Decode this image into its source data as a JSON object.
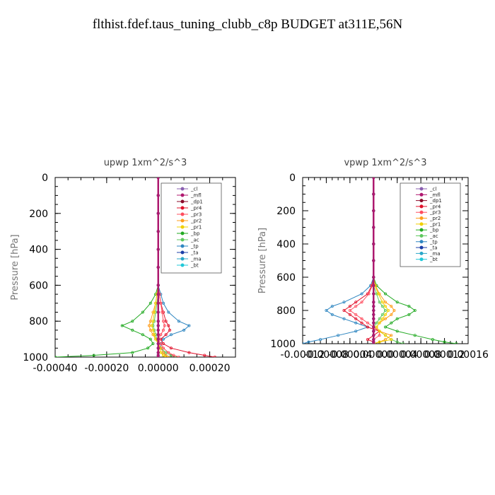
{
  "page": {
    "title": "flthist.fdef.taus_tuning_clubb_c8p  BUDGET at311E,56N"
  },
  "colors": {
    "_cl": "#8a5fb0",
    "_mfl": "#b0186f",
    "_dp1": "#8b0a2a",
    "_pr4": "#e0102a",
    "_pr3": "#ff4d5e",
    "_pr2": "#ff9d1a",
    "_pr1": "#f0d000",
    "_bp": "#22aa22",
    "_ac": "#5ec85e",
    "_tp": "#2e86c1",
    "_ta": "#1c3fa8",
    "_ma": "#2aa7c9",
    "_bt": "#20c8d8"
  },
  "chart_data": [
    {
      "type": "line",
      "title": "upwp   1xm^2/s^3",
      "ylabel": "Pressure [hPa]",
      "xlabel": "",
      "xlim": [
        -0.0004,
        0.0003
      ],
      "ylim": [
        1000,
        0
      ],
      "xticks": [
        "-0.00040",
        "-0.00020",
        "0.00000",
        "0.00020"
      ],
      "xtick_values": [
        -0.0004,
        -0.0002,
        0.0,
        0.0002
      ],
      "yticks": [
        "0",
        "200",
        "400",
        "600",
        "800",
        "1000"
      ],
      "ytick_values": [
        0,
        200,
        400,
        600,
        800,
        1000
      ],
      "legend_position": "top-right",
      "legend": [
        "_cl",
        "_mfl",
        "_dp1",
        "_pr4",
        "_pr3",
        "_pr2",
        "_pr1",
        "_bp",
        "_ac",
        "_tp",
        "_ta",
        "_ma",
        "_bt"
      ],
      "y": [
        0,
        100,
        200,
        300,
        400,
        500,
        600,
        650,
        700,
        750,
        800,
        825,
        850,
        875,
        900,
        925,
        950,
        975,
        990,
        1000
      ],
      "series": [
        {
          "name": "_cl",
          "values": [
            0,
            0,
            0,
            0,
            0,
            0,
            0,
            0,
            0,
            0,
            0,
            0,
            0,
            0,
            0,
            0,
            0,
            0,
            0,
            0
          ]
        },
        {
          "name": "_mfl",
          "values": [
            0,
            0,
            0,
            0,
            0,
            0,
            0,
            0,
            0,
            0,
            0,
            0,
            0,
            0,
            0,
            0,
            0,
            0,
            0,
            0
          ]
        },
        {
          "name": "_dp1",
          "values": [
            0,
            0,
            0,
            0,
            0,
            0,
            0,
            0,
            0,
            0,
            0,
            0,
            0,
            0,
            0,
            0,
            0,
            0,
            0,
            0
          ]
        },
        {
          "name": "_pr4",
          "values": [
            0,
            0,
            0,
            0,
            0,
            0,
            0,
            5e-06,
            1e-05,
            2e-05,
            3e-05,
            4e-05,
            4.5e-05,
            3e-05,
            1e-05,
            2e-05,
            5e-05,
            0.00012,
            0.00018,
            0.00022
          ]
        },
        {
          "name": "_pr3",
          "values": [
            0,
            0,
            0,
            0,
            0,
            0,
            0,
            5e-06,
            1e-05,
            1.5e-05,
            2e-05,
            2.5e-05,
            2e-05,
            1e-05,
            0,
            1e-05,
            2e-05,
            4e-05,
            6e-05,
            8e-05
          ]
        },
        {
          "name": "_pr2",
          "values": [
            0,
            0,
            0,
            0,
            0,
            0,
            0,
            -5e-06,
            -1e-05,
            -2e-05,
            -3e-05,
            -3.5e-05,
            -3e-05,
            -2e-05,
            -1e-05,
            0,
            1e-05,
            2e-05,
            3e-05,
            4e-05
          ]
        },
        {
          "name": "_pr1",
          "values": [
            0,
            0,
            0,
            0,
            0,
            0,
            0,
            -5e-06,
            -1e-05,
            -1.5e-05,
            -2e-05,
            -2.5e-05,
            -2e-05,
            -1.5e-05,
            -1e-05,
            0,
            5e-06,
            1e-05,
            2e-05,
            3e-05
          ]
        },
        {
          "name": "_bp",
          "values": [
            0,
            0,
            0,
            0,
            0,
            0,
            0,
            -1e-05,
            -3e-05,
            -6e-05,
            -0.0001,
            -0.00014,
            -0.0001,
            -6e-05,
            -3e-05,
            -2e-05,
            -4e-05,
            -0.0001,
            -0.00025,
            -0.0004
          ]
        },
        {
          "name": "_ac",
          "values": [
            0,
            0,
            0,
            0,
            0,
            0,
            0,
            0,
            -5e-06,
            -1e-05,
            -1.5e-05,
            -2e-05,
            -1.5e-05,
            -1e-05,
            -5e-06,
            0,
            1e-05,
            3e-05,
            5e-05,
            7e-05
          ]
        },
        {
          "name": "_tp",
          "values": [
            0,
            0,
            0,
            0,
            0,
            0,
            0,
            1e-05,
            2e-05,
            4e-05,
            8e-05,
            0.00012,
            0.0001,
            5e-05,
            2e-05,
            1e-05,
            1e-05,
            2e-05,
            3e-05,
            4e-05
          ]
        },
        {
          "name": "_ta",
          "values": [
            0,
            0,
            0,
            0,
            0,
            0,
            0,
            0,
            0,
            0,
            0,
            0,
            0,
            0,
            0,
            0,
            0,
            0,
            0,
            0
          ]
        },
        {
          "name": "_ma",
          "values": [
            0,
            0,
            0,
            0,
            0,
            0,
            0,
            0,
            0,
            0,
            0,
            0,
            0,
            0,
            0,
            0,
            0,
            0,
            0,
            0
          ]
        },
        {
          "name": "_bt",
          "values": [
            0,
            0,
            0,
            0,
            0,
            0,
            0,
            0,
            0,
            0,
            0,
            0,
            0,
            0,
            0,
            0,
            0,
            0,
            0,
            0
          ]
        }
      ]
    },
    {
      "type": "line",
      "title": "vpwp   1xm^2/s^3",
      "ylabel": "Pressure [hPa]",
      "xlabel": "",
      "xlim": [
        -0.00012,
        0.00016
      ],
      "ylim": [
        1000,
        0
      ],
      "xticks": [
        "-0.00012",
        "-0.00008",
        "-0.00004",
        "0.00000",
        "0.00004",
        "0.00008",
        "0.00012",
        "0.00016"
      ],
      "xtick_values": [
        -0.00012,
        -8e-05,
        -4e-05,
        0.0,
        4e-05,
        8e-05,
        0.00012,
        0.00016
      ],
      "yticks": [
        "0",
        "200",
        "400",
        "600",
        "800",
        "1000"
      ],
      "ytick_values": [
        0,
        200,
        400,
        600,
        800,
        1000
      ],
      "legend_position": "top-right",
      "legend": [
        "_cl",
        "_mfl",
        "_dp1",
        "_pr4",
        "_pr3",
        "_pr2",
        "_pr1",
        "_bp",
        "_ac",
        "_tp",
        "_ta",
        "_ma",
        "_bt"
      ],
      "y": [
        0,
        100,
        200,
        300,
        400,
        500,
        600,
        650,
        700,
        750,
        775,
        800,
        825,
        850,
        875,
        900,
        925,
        950,
        975,
        990,
        1000
      ],
      "series": [
        {
          "name": "_cl",
          "values": [
            0,
            0,
            0,
            0,
            0,
            0,
            0,
            0,
            0,
            0,
            0,
            0,
            0,
            0,
            0,
            0,
            0,
            0,
            0,
            0,
            0
          ]
        },
        {
          "name": "_mfl",
          "values": [
            0,
            0,
            0,
            0,
            0,
            0,
            0,
            0,
            0,
            0,
            0,
            0,
            0,
            0,
            0,
            0,
            0,
            0,
            0,
            0,
            0
          ]
        },
        {
          "name": "_dp1",
          "values": [
            0,
            0,
            0,
            0,
            0,
            0,
            0,
            0,
            0,
            0,
            0,
            0,
            0,
            0,
            0,
            0,
            0,
            0,
            0,
            0,
            0
          ]
        },
        {
          "name": "_pr4",
          "values": [
            0,
            0,
            0,
            0,
            0,
            0,
            0,
            -3e-06,
            -1e-05,
            -3e-05,
            -4e-05,
            -5e-05,
            -4e-05,
            -3e-05,
            -2e-05,
            -1e-05,
            1e-05,
            0,
            -1e-05,
            0,
            0
          ]
        },
        {
          "name": "_pr3",
          "values": [
            0,
            0,
            0,
            0,
            0,
            0,
            0,
            -2e-06,
            -8e-06,
            -2e-05,
            -3e-05,
            -4e-05,
            -3e-05,
            -2e-05,
            -1e-05,
            0,
            1e-05,
            1e-05,
            0,
            0,
            0
          ]
        },
        {
          "name": "_pr2",
          "values": [
            0,
            0,
            0,
            0,
            0,
            0,
            0,
            3e-06,
            1e-05,
            2e-05,
            3e-05,
            3.5e-05,
            3e-05,
            2e-05,
            1e-05,
            5e-06,
            1e-05,
            3e-05,
            2e-05,
            1e-05,
            0
          ]
        },
        {
          "name": "_pr1",
          "values": [
            0,
            0,
            0,
            0,
            0,
            0,
            0,
            2e-06,
            8e-06,
            1.5e-05,
            2e-05,
            2.5e-05,
            2e-05,
            1.5e-05,
            1e-05,
            5e-06,
            1e-05,
            2e-05,
            3e-05,
            1e-05,
            0
          ]
        },
        {
          "name": "_bp",
          "values": [
            0,
            0,
            0,
            0,
            0,
            0,
            0,
            5e-06,
            2e-05,
            4e-05,
            6e-05,
            7e-05,
            6e-05,
            4e-05,
            3e-05,
            2e-05,
            4e-05,
            7e-05,
            0.0001,
            0.00012,
            0.00014
          ]
        },
        {
          "name": "_ac",
          "values": [
            0,
            0,
            0,
            0,
            0,
            0,
            0,
            0,
            5e-06,
            1e-05,
            1.5e-05,
            2e-05,
            1.5e-05,
            1e-05,
            5e-06,
            0,
            1e-05,
            2e-05,
            3e-05,
            4e-05,
            5e-05
          ]
        },
        {
          "name": "_tp",
          "values": [
            0,
            0,
            0,
            0,
            0,
            0,
            0,
            -5e-06,
            -2e-05,
            -5e-05,
            -7e-05,
            -8e-05,
            -7e-05,
            -5e-05,
            -3e-05,
            -1e-05,
            -3e-05,
            -6e-05,
            -9e-05,
            -0.00011,
            -0.00012
          ]
        },
        {
          "name": "_ta",
          "values": [
            0,
            0,
            0,
            0,
            0,
            0,
            0,
            0,
            0,
            0,
            0,
            0,
            0,
            0,
            0,
            0,
            0,
            0,
            0,
            0,
            0
          ]
        },
        {
          "name": "_ma",
          "values": [
            0,
            0,
            0,
            0,
            0,
            0,
            0,
            0,
            0,
            0,
            0,
            0,
            0,
            0,
            0,
            0,
            0,
            0,
            0,
            0,
            0
          ]
        },
        {
          "name": "_bt",
          "values": [
            0,
            0,
            0,
            0,
            0,
            0,
            0,
            0,
            0,
            0,
            0,
            0,
            0,
            0,
            0,
            0,
            0,
            0,
            0,
            0,
            0
          ]
        }
      ]
    }
  ]
}
